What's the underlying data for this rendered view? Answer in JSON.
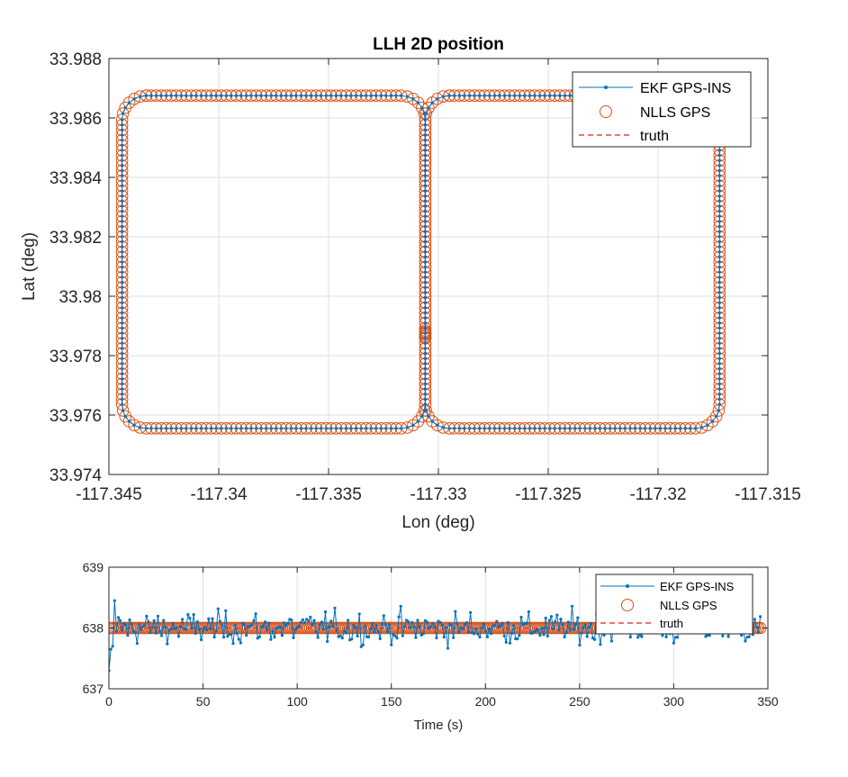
{
  "colors": {
    "ekf": "#0072BD",
    "nlls": "#D95319",
    "truth": "#E02020",
    "axis": "#262626",
    "grid": "#DFDFDF"
  },
  "chart_data": [
    {
      "type": "scatter",
      "title": "LLH 2D position",
      "xlabel": "Lon (deg)",
      "ylabel": "Lat (deg)",
      "xlim": [
        -117.345,
        -117.315
      ],
      "ylim": [
        33.974,
        33.988
      ],
      "xticks": [
        -117.345,
        -117.34,
        -117.335,
        -117.33,
        -117.325,
        -117.32,
        -117.315
      ],
      "xtick_labels": [
        "-117.345",
        "-117.34",
        "-117.335",
        "-117.33",
        "-117.325",
        "-117.32",
        "-117.315"
      ],
      "yticks": [
        33.974,
        33.976,
        33.978,
        33.98,
        33.982,
        33.984,
        33.986,
        33.988
      ],
      "ytick_labels": [
        "33.974",
        "33.976",
        "33.978",
        "33.98",
        "33.982",
        "33.984",
        "33.986",
        "33.988"
      ],
      "grid": true,
      "legend_position": "top-right",
      "track": {
        "description": "figure-eight route: two rounded rectangles sharing the center meridian",
        "lat_south": 33.97555,
        "lat_north": 33.98675,
        "lon_west": -117.3444,
        "lon_center": -117.3306,
        "lon_east": -117.3172,
        "corner_radius_deg": 0.0011
      },
      "series": [
        {
          "name": "EKF GPS-INS",
          "style": "line-dot"
        },
        {
          "name": "NLLS GPS",
          "style": "open-circle"
        },
        {
          "name": "truth",
          "style": "dashed"
        }
      ]
    },
    {
      "type": "line",
      "title": "",
      "xlabel": "Time (s)",
      "ylabel": "",
      "xlim": [
        0,
        350
      ],
      "ylim": [
        637,
        639
      ],
      "xticks": [
        0,
        50,
        100,
        150,
        200,
        250,
        300,
        350
      ],
      "xtick_labels": [
        "0",
        "50",
        "100",
        "150",
        "200",
        "250",
        "300",
        "350"
      ],
      "yticks": [
        637,
        638,
        639
      ],
      "ytick_labels": [
        "637",
        "638",
        "639"
      ],
      "grid": true,
      "legend_position": "top-right",
      "time_end": 346,
      "sample_interval": 1,
      "truth_value": 638,
      "nlls_value": 638,
      "ekf_start_values": [
        637.05,
        637.65,
        637.7,
        638.45,
        637.95
      ],
      "ekf_noise_std": 0.13,
      "series": [
        {
          "name": "EKF GPS-INS",
          "style": "line-dot"
        },
        {
          "name": "NLLS GPS",
          "style": "open-circle"
        },
        {
          "name": "truth",
          "style": "dashed"
        }
      ]
    }
  ]
}
